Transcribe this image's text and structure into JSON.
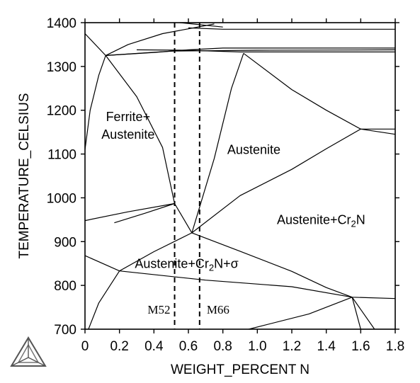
{
  "chart_data": {
    "type": "phase-diagram",
    "xlabel": "WEIGHT_PERCENT N",
    "ylabel": "TEMPERATURE_CELSIUS",
    "xlim": [
      0,
      1.8
    ],
    "ylim": [
      700,
      1400
    ],
    "xticks": [
      "0",
      "0.2",
      "0.4",
      "0.6",
      "0.8",
      "1.0",
      "1.2",
      "1.4",
      "1.6",
      "1.8"
    ],
    "yticks": [
      "700",
      "800",
      "900",
      "1000",
      "1100",
      "1200",
      "1300",
      "1400"
    ],
    "grid": false,
    "phase_boundaries": [
      {
        "points": [
          [
            0,
            1375
          ],
          [
            0.12,
            1325
          ]
        ]
      },
      {
        "points": [
          [
            0,
            1110
          ],
          [
            0.03,
            1200
          ],
          [
            0.08,
            1280
          ],
          [
            0.12,
            1325
          ]
        ]
      },
      {
        "points": [
          [
            0.12,
            1325
          ],
          [
            0.25,
            1350
          ],
          [
            0.45,
            1375
          ],
          [
            0.75,
            1397
          ]
        ]
      },
      {
        "points": [
          [
            0.12,
            1325
          ],
          [
            0.4,
            1332
          ],
          [
            0.6,
            1338
          ],
          [
            0.8,
            1342
          ],
          [
            1.8,
            1342
          ]
        ]
      },
      {
        "points": [
          [
            0.12,
            1325
          ],
          [
            0.5,
            1335
          ],
          [
            1.0,
            1337
          ],
          [
            1.8,
            1338
          ]
        ]
      },
      {
        "points": [
          [
            0.3,
            1338
          ],
          [
            0.6,
            1337
          ],
          [
            0.9,
            1333
          ],
          [
            1.8,
            1333
          ]
        ]
      },
      {
        "points": [
          [
            0.6,
            1388
          ],
          [
            0.8,
            1385
          ],
          [
            1.8,
            1385
          ]
        ]
      },
      {
        "points": [
          [
            0.55,
            1400
          ],
          [
            0.8,
            1390
          ]
        ]
      },
      {
        "points": [
          [
            0.12,
            1325
          ],
          [
            0.3,
            1231
          ],
          [
            0.45,
            1115
          ],
          [
            0.52,
            987
          ]
        ]
      },
      {
        "points": [
          [
            0,
            948
          ],
          [
            0.25,
            968
          ],
          [
            0.52,
            987
          ]
        ]
      },
      {
        "points": [
          [
            0.17,
            943
          ],
          [
            0.35,
            965
          ],
          [
            0.52,
            987
          ]
        ]
      },
      {
        "points": [
          [
            0.52,
            987
          ],
          [
            0.62,
            920
          ]
        ]
      },
      {
        "points": [
          [
            0.62,
            920
          ],
          [
            0.75,
            1090
          ],
          [
            0.85,
            1250
          ],
          [
            0.92,
            1330
          ]
        ]
      },
      {
        "points": [
          [
            0.92,
            1330
          ],
          [
            1.2,
            1247
          ],
          [
            1.4,
            1200
          ],
          [
            1.6,
            1157
          ]
        ]
      },
      {
        "points": [
          [
            0.62,
            920
          ],
          [
            0.9,
            1005
          ],
          [
            1.2,
            1065
          ],
          [
            1.4,
            1112
          ],
          [
            1.6,
            1157
          ]
        ]
      },
      {
        "points": [
          [
            1.6,
            1157
          ],
          [
            1.8,
            1157
          ]
        ]
      },
      {
        "points": [
          [
            1.6,
            1157
          ],
          [
            1.8,
            1145
          ]
        ]
      },
      {
        "points": [
          [
            0,
            868
          ],
          [
            0.2,
            833
          ]
        ]
      },
      {
        "points": [
          [
            0.62,
            920
          ],
          [
            0.4,
            877
          ],
          [
            0.2,
            833
          ],
          [
            0.08,
            760
          ],
          [
            0.02,
            700
          ]
        ]
      },
      {
        "points": [
          [
            0.62,
            920
          ],
          [
            0.9,
            878
          ],
          [
            1.2,
            832
          ],
          [
            1.4,
            795
          ],
          [
            1.55,
            773
          ]
        ]
      },
      {
        "points": [
          [
            0.2,
            833
          ],
          [
            0.7,
            812
          ],
          [
            1.2,
            797
          ],
          [
            1.55,
            773
          ],
          [
            1.8,
            770
          ]
        ]
      },
      {
        "points": [
          [
            0.95,
            700
          ],
          [
            1.3,
            735
          ],
          [
            1.55,
            773
          ]
        ]
      },
      {
        "points": [
          [
            1.55,
            773
          ],
          [
            1.68,
            700
          ]
        ]
      },
      {
        "points": [
          [
            1.55,
            773
          ],
          [
            1.6,
            700
          ]
        ]
      }
    ],
    "markers": [
      {
        "label": "M52",
        "x": 0.52
      },
      {
        "label": "M66",
        "x": 0.665
      }
    ],
    "region_labels": [
      {
        "lines": [
          "Ferrite+",
          "Austenite"
        ],
        "x": 0.25,
        "y": 1175
      },
      {
        "lines": [
          "Austenite"
        ],
        "x": 0.98,
        "y": 1100
      },
      {
        "lines": [
          "Austenite+Cr",
          "2",
          "N"
        ],
        "x": 1.37,
        "y": 940
      },
      {
        "lines": [
          "Austenite+Cr",
          "2",
          "N+σ"
        ],
        "x": 0.59,
        "y": 840
      }
    ]
  }
}
